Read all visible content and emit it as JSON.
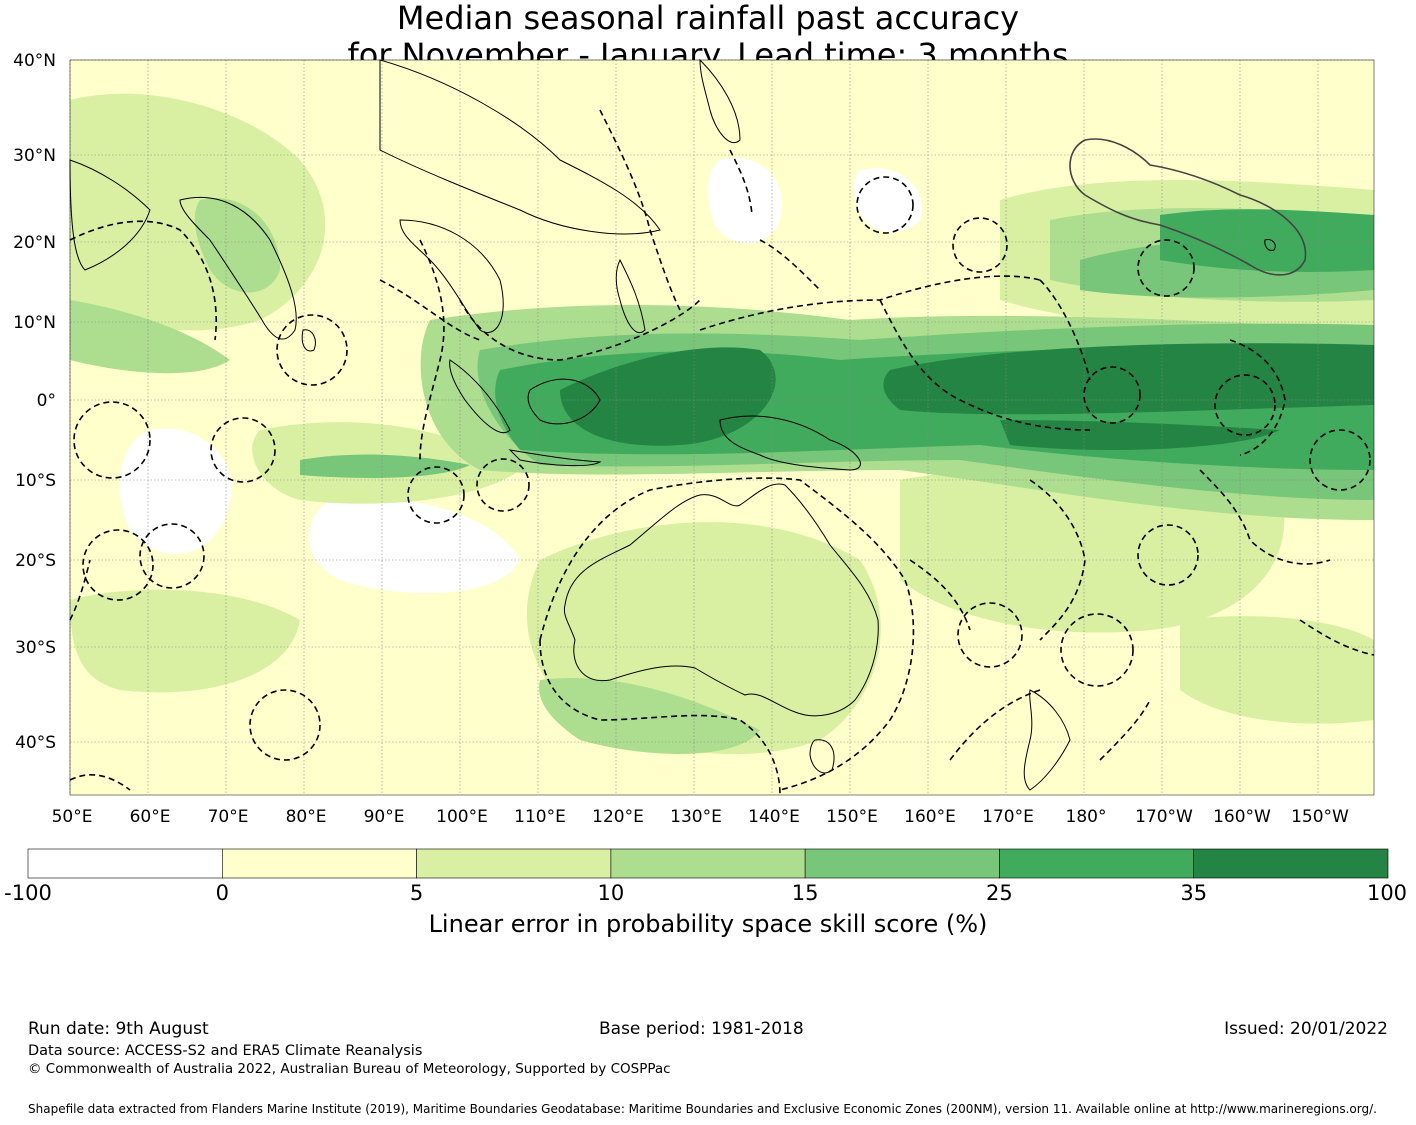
{
  "title": {
    "line1": "Median seasonal rainfall past accuracy",
    "line2": "for November - January. Lead time: 3 months"
  },
  "map": {
    "lat_labels": [
      "40°N",
      "30°N",
      "20°N",
      "10°N",
      "0°",
      "10°S",
      "20°S",
      "30°S",
      "40°S"
    ],
    "lon_labels": [
      "50°E",
      "60°E",
      "70°E",
      "80°E",
      "90°E",
      "100°E",
      "110°E",
      "120°E",
      "130°E",
      "140°E",
      "150°E",
      "160°E",
      "170°E",
      "180°",
      "170°W",
      "160°W",
      "150°W"
    ]
  },
  "colorbar": {
    "ticks": [
      "-100",
      "0",
      "5",
      "10",
      "15",
      "25",
      "35",
      "100"
    ],
    "colors": [
      "#ffffff",
      "#ffffcc",
      "#d9f0a3",
      "#addd8e",
      "#78c679",
      "#41ab5d",
      "#238443"
    ],
    "title": "Linear error in probability space skill score (%)"
  },
  "footer": {
    "run_date": "Run date: 9th August",
    "base_period": "Base period: 1981-2018",
    "issued": "Issued: 20/01/2022",
    "data_source": "Data source: ACCESS-S2 and ERA5 Climate Reanalysis",
    "copyright": "© Commonwealth of Australia 2022, Australian Bureau of Meteorology, Supported by COSPPac",
    "shapefile": "Shapefile data extracted from Flanders Marine Institute (2019), Maritime Boundaries Geodatabase: Maritime Boundaries and Exclusive Economic Zones (200NM), version 11. Available online at http://www.marineregions.org/."
  }
}
